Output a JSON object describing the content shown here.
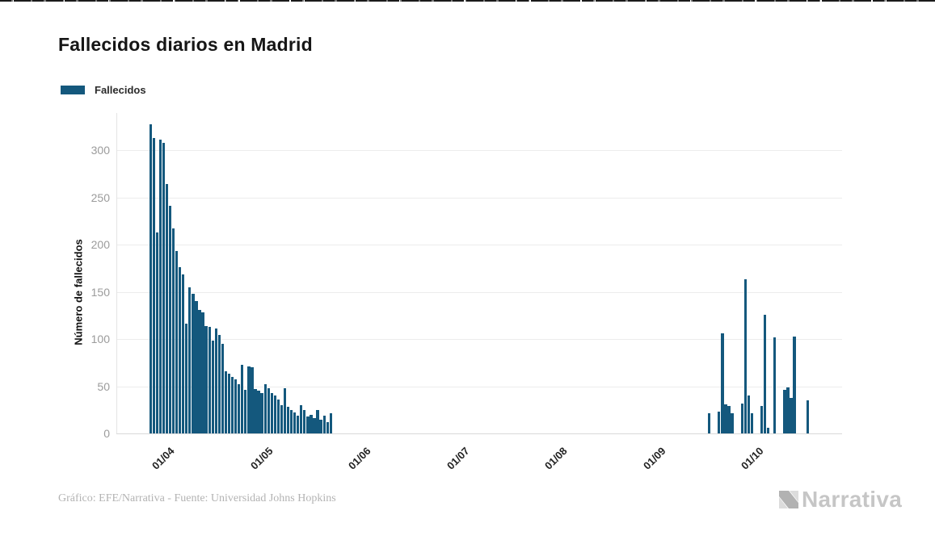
{
  "header": {
    "title": "Fallecidos diarios en Madrid"
  },
  "legend": {
    "label": "Fallecidos",
    "color": "#14587d"
  },
  "footer": {
    "credit": "Gráfico: EFE/Narrativa - Fuente: Universidad Johns Hopkins",
    "brand": "Narrativa"
  },
  "chart_data": {
    "type": "bar",
    "title": "Fallecidos diarios en Madrid",
    "xlabel": "",
    "ylabel": "Número de fallecidos",
    "series_name": "Fallecidos",
    "bar_color": "#14587d",
    "ylim": [
      0,
      340
    ],
    "yticks": [
      0,
      50,
      100,
      150,
      200,
      250,
      300
    ],
    "xtick_labels": [
      "01/04",
      "01/05",
      "01/06",
      "01/07",
      "01/08",
      "01/09",
      "01/10"
    ],
    "grid": "horizontal-light",
    "legend_position": "top-left",
    "segments": [
      {
        "start_date": "27/03/2020",
        "end_date": "21/05/2020",
        "values": [
          327,
          313,
          213,
          311,
          308,
          264,
          241,
          217,
          193,
          176,
          168,
          116,
          155,
          148,
          140,
          131,
          128,
          114,
          113,
          98,
          111,
          104,
          95,
          66,
          63,
          60,
          57,
          52,
          73,
          46,
          71,
          70,
          47,
          45,
          43,
          52,
          48,
          43,
          40,
          36,
          30,
          48,
          28,
          25,
          22,
          19,
          30,
          25,
          18,
          20,
          16,
          25,
          15,
          19,
          12,
          21
        ]
      },
      {
        "start_date": "16/09/2020",
        "end_date": "16/10/2020",
        "values": [
          21,
          0,
          0,
          23,
          106,
          31,
          29,
          21,
          0,
          0,
          32,
          163,
          40,
          21,
          0,
          0,
          29,
          126,
          6,
          0,
          102,
          0,
          0,
          46,
          49,
          38,
          103,
          0,
          0,
          0,
          35
        ]
      }
    ]
  }
}
